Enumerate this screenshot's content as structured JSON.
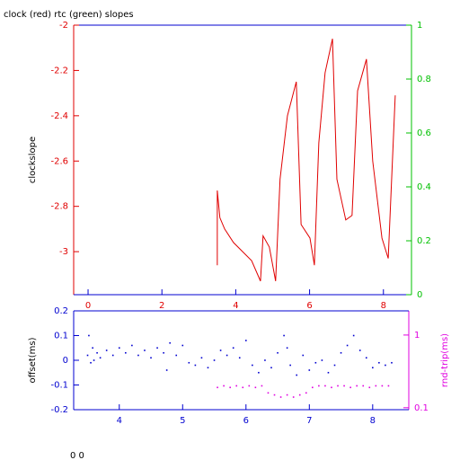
{
  "chart_data": [
    {
      "type": "line",
      "title": "clock (red) rtc (green) slopes",
      "y_label": "clockslope",
      "xlim": [
        -0.39,
        8.76
      ],
      "xticks": [
        0,
        2,
        4,
        6,
        8
      ],
      "ylim": [
        -3.19,
        -2
      ],
      "yticks": [
        -2,
        -2.2,
        -2.4,
        -2.6,
        -2.8,
        -3
      ],
      "y2lim": [
        0,
        1
      ],
      "y2ticks": [
        0,
        0.2,
        0.4,
        0.6,
        0.8,
        1
      ],
      "series": [
        {
          "color": "#e00000",
          "x": [
            3.5,
            3.5,
            3.57,
            3.7,
            3.94,
            4.43,
            4.67,
            4.74,
            4.91,
            5.08,
            5.2,
            5.4,
            5.64,
            5.77,
            6.01,
            6.13,
            6.25,
            6.42,
            6.62,
            6.74,
            6.98,
            7.15,
            7.3,
            7.54,
            7.71,
            7.96,
            8.13,
            8.32
          ],
          "values": [
            -3.06,
            -2.73,
            -2.85,
            -2.9,
            -2.96,
            -3.04,
            -3.13,
            -2.93,
            -2.98,
            -3.13,
            -2.68,
            -2.4,
            -2.25,
            -2.88,
            -2.94,
            -3.06,
            -2.52,
            -2.21,
            -2.06,
            -2.68,
            -2.86,
            -2.84,
            -2.29,
            -2.15,
            -2.6,
            -2.94,
            -3.03,
            -2.31
          ]
        }
      ]
    },
    {
      "type": "scatter",
      "y_label": "offset(ms)",
      "y2_label": "rnd-trip(ms)",
      "xlim": [
        3.28,
        8.57
      ],
      "xticks": [
        4,
        5,
        6,
        7,
        8
      ],
      "ylim": [
        -0.2,
        0.2
      ],
      "yticks": [
        0.2,
        0.1,
        0,
        -0.1,
        -0.2
      ],
      "y2lim": [
        0.094,
        2.15
      ],
      "y2ticks": [
        0.1,
        1
      ],
      "y2log": true,
      "series": [
        {
          "color": "#0000d0",
          "x": [
            3.5,
            3.52,
            3.55,
            3.58,
            3.6,
            3.65,
            3.7,
            3.8,
            3.9,
            4.0,
            4.1,
            4.2,
            4.3,
            4.4,
            4.5,
            4.6,
            4.7,
            4.75,
            4.8,
            4.9,
            5.0,
            5.1,
            5.2,
            5.3,
            5.4,
            5.5,
            5.6,
            5.7,
            5.8,
            5.9,
            6.0,
            6.1,
            6.2,
            6.3,
            6.4,
            6.5,
            6.6,
            6.65,
            6.7,
            6.8,
            6.9,
            7.0,
            7.1,
            7.2,
            7.3,
            7.4,
            7.5,
            7.6,
            7.7,
            7.8,
            7.9,
            8.0,
            8.1,
            8.2,
            8.3
          ],
          "values": [
            0.02,
            0.1,
            -0.01,
            0.05,
            0,
            0.03,
            0.01,
            0.04,
            0.02,
            0.05,
            0.03,
            0.06,
            0.02,
            0.04,
            0.01,
            0.05,
            0.03,
            -0.04,
            0.07,
            0.02,
            0.06,
            -0.01,
            -0.02,
            0.01,
            -0.03,
            0,
            0.04,
            0.02,
            0.05,
            0.01,
            0.08,
            -0.02,
            -0.05,
            0,
            -0.03,
            0.03,
            0.1,
            0.05,
            -0.02,
            -0.06,
            0.02,
            -0.04,
            -0.01,
            0,
            -0.05,
            -0.02,
            0.03,
            0.06,
            0.1,
            0.04,
            0.01,
            -0.03,
            -0.01,
            -0.02,
            -0.01
          ]
        },
        {
          "color": "#e000e0",
          "axis": "y2",
          "x": [
            5.55,
            5.65,
            5.75,
            5.85,
            5.95,
            6.05,
            6.15,
            6.25,
            6.35,
            6.45,
            6.55,
            6.65,
            6.75,
            6.85,
            6.95,
            7.05,
            7.15,
            7.25,
            7.35,
            7.45,
            7.55,
            7.65,
            7.75,
            7.85,
            7.95,
            8.05,
            8.15,
            8.25
          ],
          "values": [
            0.19,
            0.2,
            0.19,
            0.2,
            0.19,
            0.2,
            0.19,
            0.2,
            0.16,
            0.15,
            0.14,
            0.15,
            0.14,
            0.15,
            0.16,
            0.19,
            0.2,
            0.2,
            0.19,
            0.2,
            0.2,
            0.19,
            0.2,
            0.2,
            0.19,
            0.2,
            0.2,
            0.2
          ]
        }
      ]
    }
  ],
  "footer": "0 0"
}
